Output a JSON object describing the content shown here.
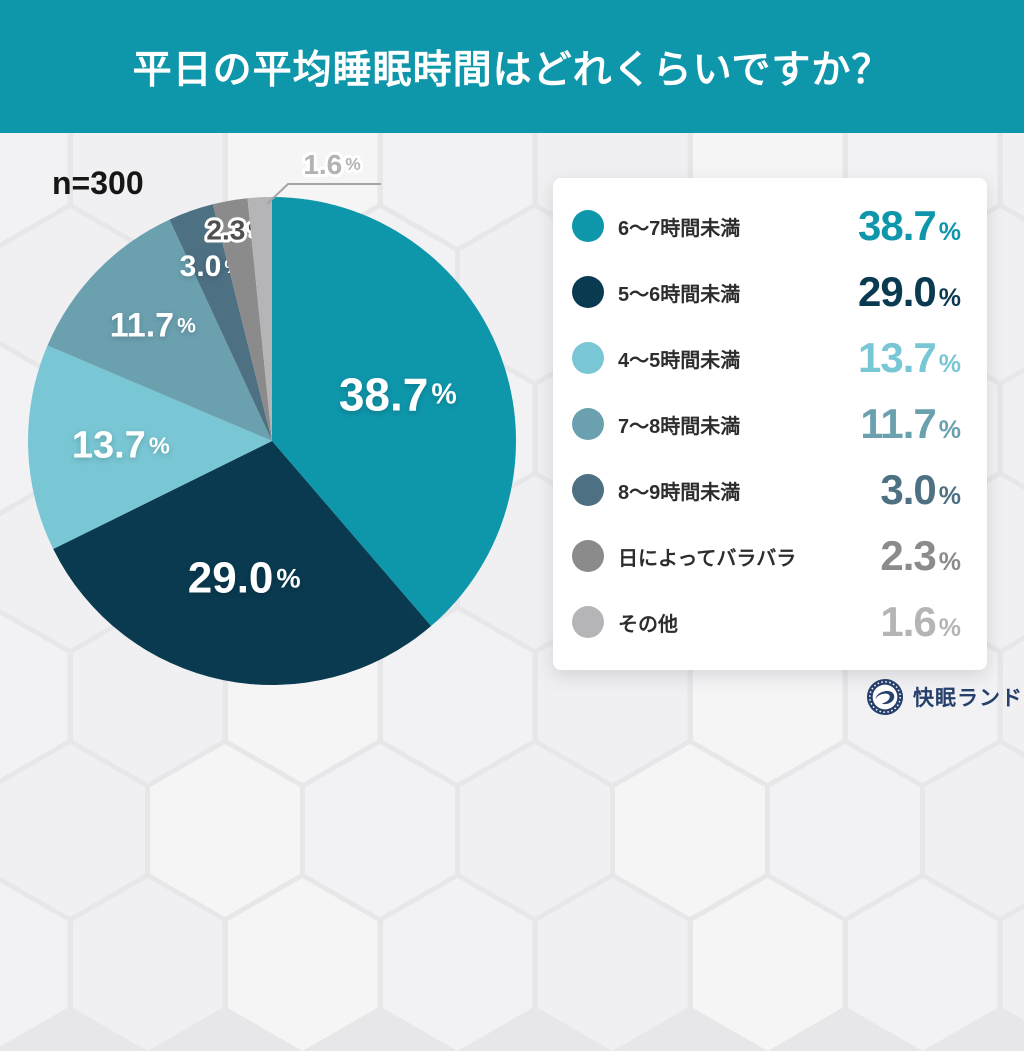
{
  "header": {
    "title": "平日の平均睡眠時間はどれくらいですか？",
    "bg_color": "#0e96ab",
    "text_color": "#ffffff"
  },
  "sample_label": "n=300",
  "chart_data": {
    "type": "pie",
    "title": "平日の平均睡眠時間はどれくらいですか？",
    "sample_size": 300,
    "unit": "%",
    "start_angle": "12-oclock",
    "direction": "clockwise",
    "legend_position": "right",
    "items": [
      {
        "label": "6～7時間未満",
        "value": 38.7,
        "color": "#0e96ab"
      },
      {
        "label": "5～6時間未満",
        "value": 29.0,
        "color": "#0a3a50"
      },
      {
        "label": "4～5時間未満",
        "value": 13.7,
        "color": "#79c6d4"
      },
      {
        "label": "7～8時間未満",
        "value": 11.7,
        "color": "#6ba0af"
      },
      {
        "label": "8～9時間未満",
        "value": 3.0,
        "color": "#4d7083"
      },
      {
        "label": "日によってバラバラ",
        "value": 2.3,
        "color": "#8b8b8b"
      },
      {
        "label": "その他",
        "value": 1.6,
        "color": "#b5b5b7"
      }
    ]
  },
  "footer": {
    "brand": "快眠ランド",
    "brand_color": "#27406b"
  }
}
